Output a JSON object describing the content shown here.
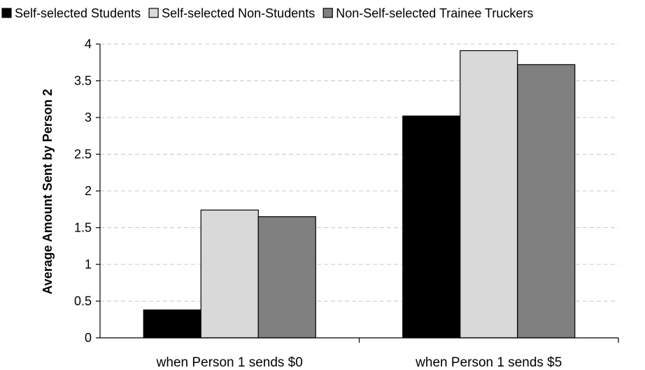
{
  "chart_data": {
    "type": "bar",
    "title": "",
    "xlabel": "",
    "ylabel": "Average Amount Sent by Person 2",
    "ylim": [
      0,
      4
    ],
    "yticks": [
      "0",
      "0.5",
      "1",
      "1.5",
      "2",
      "2.5",
      "3",
      "3.5",
      "4"
    ],
    "ytick_values": [
      0,
      0.5,
      1,
      1.5,
      2,
      2.5,
      3,
      3.5,
      4
    ],
    "grid": true,
    "legend_position": "top",
    "categories": [
      "when Person 1 sends $0",
      "when Person 1 sends $5"
    ],
    "series": [
      {
        "name": "Self-selected Students",
        "color": "#000000",
        "values": [
          0.38,
          3.02
        ]
      },
      {
        "name": "Self-selected Non-Students",
        "color": "#d9d9d9",
        "values": [
          1.74,
          3.91
        ]
      },
      {
        "name": "Non-Self-selected Trainee Truckers",
        "color": "#808080",
        "values": [
          1.65,
          3.72
        ]
      }
    ]
  }
}
